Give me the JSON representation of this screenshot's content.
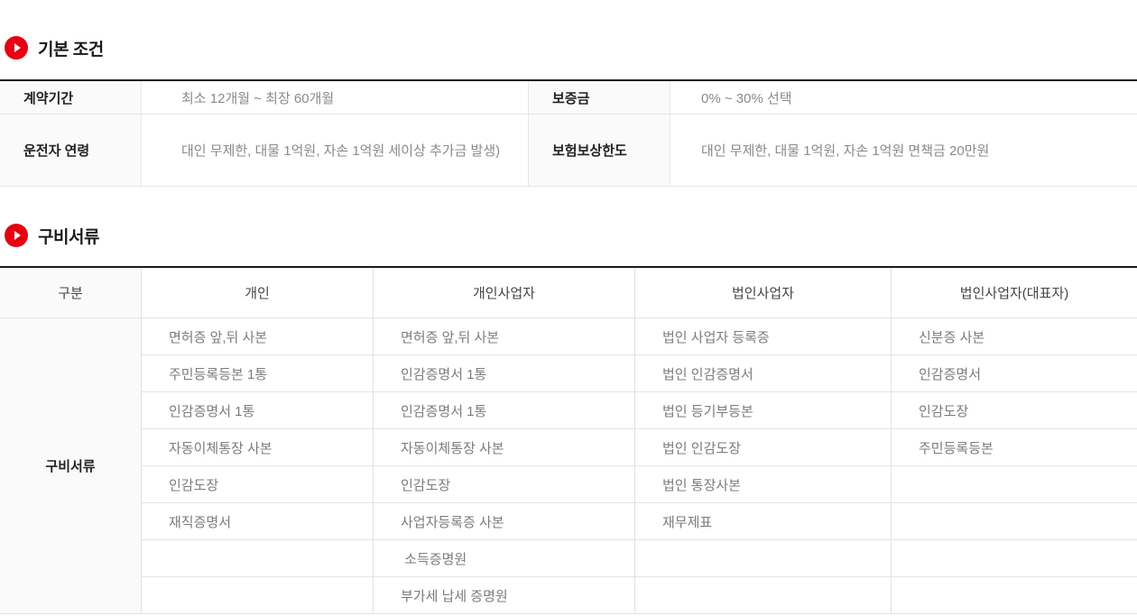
{
  "theme": {
    "accent_red": "#e60012",
    "border_dark": "#1a1a1a",
    "border_light": "#e3e3e3",
    "label_bg": "#fafafa"
  },
  "basic": {
    "title": "기본 조건",
    "rows": [
      {
        "cells": [
          {
            "label": "계약기간",
            "value": "최소 12개월 ~ 최장 60개월"
          },
          {
            "label": "보증금",
            "value": "0% ~ 30% 선택"
          }
        ]
      },
      {
        "cells": [
          {
            "label": "운전자 연령",
            "value": "대인 무제한, 대물 1억원, 자손 1억원 세이상 추가금 발생)"
          },
          {
            "label": "보험보상한도",
            "value": "대인 무제한, 대물 1억원, 자손 1억원 면책금 20만원"
          }
        ]
      }
    ]
  },
  "docs": {
    "title": "구비서류",
    "row_label": "구비서류",
    "headers": [
      "구분",
      "개인",
      "개인사업자",
      "법인사업자",
      "법인사업자(대표자)"
    ],
    "columns": [
      [
        "면허증 앞,뒤 사본",
        "주민등록등본 1통",
        "인감증명서 1통",
        "자동이체통장 사본",
        "인감도장",
        "재직증명서",
        "",
        ""
      ],
      [
        "면허증 앞,뒤 사본",
        "인감증명서 1통",
        "인감증명서 1통",
        "자동이체통장 사본",
        "인감도장",
        "사업자등록증 사본",
        " 소득증명원",
        "부가세 납세 증명원"
      ],
      [
        "법인 사업자 등록증",
        "법인 인감증명서",
        "법인 등기부등본",
        "법인 인감도장",
        "법인 통장사본",
        "재무제표",
        "",
        ""
      ],
      [
        "신분증 사본",
        "인감증명서",
        "인감도장",
        "주민등록등본",
        "",
        "",
        "",
        ""
      ]
    ]
  }
}
